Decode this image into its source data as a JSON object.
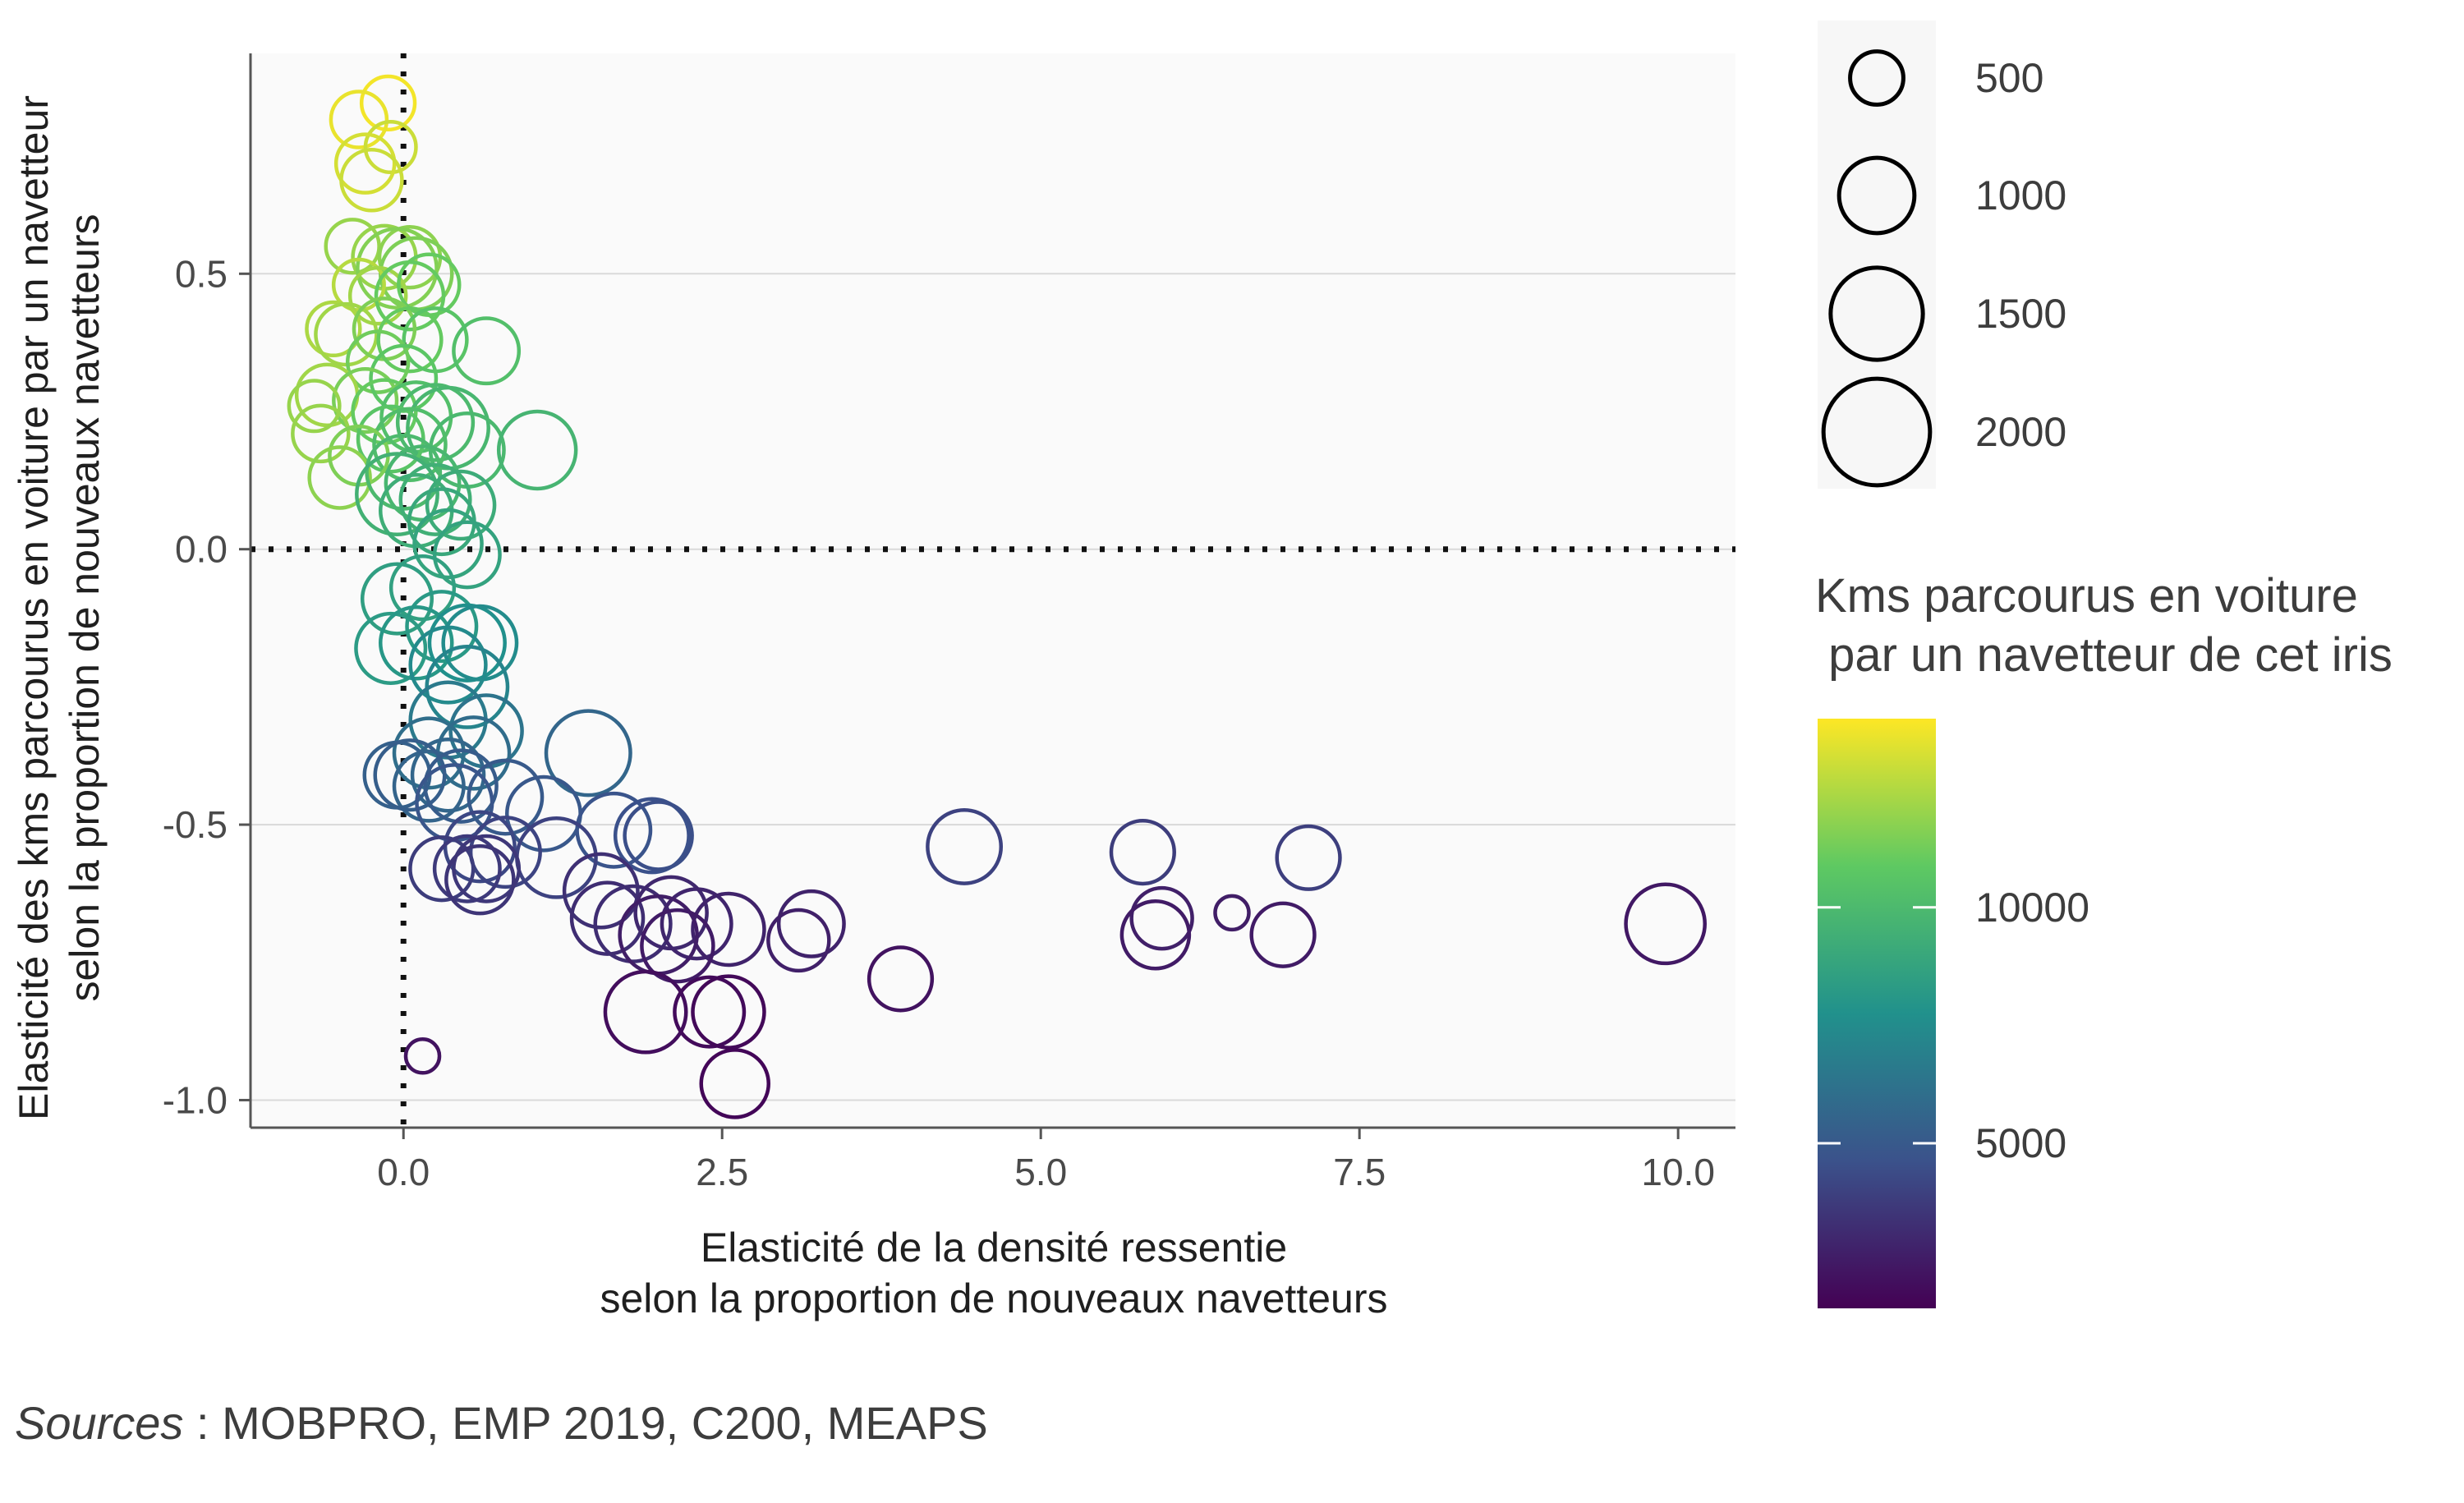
{
  "chart_data": {
    "type": "scatter",
    "title": "",
    "xlabel": [
      "Elasticité de la densité ressentie",
      "selon la proportion de nouveaux navetteurs"
    ],
    "ylabel": [
      "Elasticité des kms parcourus en voiture par un navetteur",
      "selon la proportion de nouveaux navetteurs"
    ],
    "xlim": [
      -1.2,
      10.45
    ],
    "ylim": [
      -1.05,
      0.9
    ],
    "x_ticks": [
      0.0,
      2.5,
      5.0,
      7.5,
      10.0
    ],
    "x_tick_labels": [
      "0.0",
      "2.5",
      "5.0",
      "7.5",
      "10.0"
    ],
    "y_ticks": [
      -1.0,
      -0.5,
      0.0,
      0.5
    ],
    "y_tick_labels": [
      "-1.0",
      "-0.5",
      "0.0",
      "0.5"
    ],
    "grid": "horizontal",
    "reference_lines": {
      "x": 0,
      "y": 0,
      "style": "dotted"
    },
    "size_legend": {
      "values": [
        500,
        1000,
        1500,
        2000
      ],
      "labels": [
        "500",
        "1000",
        "1500",
        "2000"
      ]
    },
    "color_legend": {
      "title": "Kms parcourus en voiture\n par un navetteur de cet iris",
      "range": [
        1500,
        14000
      ],
      "ticks": [
        5000,
        10000
      ],
      "tick_labels": [
        "5000",
        "10000"
      ],
      "colormap": "viridis",
      "colors": [
        "#440154",
        "#3b528b",
        "#21918c",
        "#5ec962",
        "#fde725"
      ]
    },
    "points": [
      {
        "x": -0.12,
        "y": 0.81,
        "size": 500,
        "color": 13800
      },
      {
        "x": -0.35,
        "y": 0.78,
        "size": 550,
        "color": 13600
      },
      {
        "x": -0.1,
        "y": 0.73,
        "size": 450,
        "color": 13000
      },
      {
        "x": -0.3,
        "y": 0.7,
        "size": 600,
        "color": 13200
      },
      {
        "x": -0.25,
        "y": 0.67,
        "size": 650,
        "color": 13000
      },
      {
        "x": -0.4,
        "y": 0.55,
        "size": 500,
        "color": 12000
      },
      {
        "x": -0.15,
        "y": 0.53,
        "size": 700,
        "color": 12000
      },
      {
        "x": 0.05,
        "y": 0.53,
        "size": 650,
        "color": 11800
      },
      {
        "x": -0.05,
        "y": 0.51,
        "size": 1100,
        "color": 11600
      },
      {
        "x": 0.1,
        "y": 0.5,
        "size": 900,
        "color": 11500
      },
      {
        "x": -0.35,
        "y": 0.48,
        "size": 450,
        "color": 12600
      },
      {
        "x": -0.2,
        "y": 0.46,
        "size": 550,
        "color": 12200
      },
      {
        "x": 0.2,
        "y": 0.48,
        "size": 650,
        "color": 11000
      },
      {
        "x": 0.05,
        "y": 0.46,
        "size": 800,
        "color": 11000
      },
      {
        "x": -0.55,
        "y": 0.4,
        "size": 500,
        "color": 12400
      },
      {
        "x": -0.45,
        "y": 0.39,
        "size": 650,
        "color": 12200
      },
      {
        "x": -0.15,
        "y": 0.4,
        "size": 650,
        "color": 11500
      },
      {
        "x": 0.05,
        "y": 0.38,
        "size": 700,
        "color": 11000
      },
      {
        "x": 0.25,
        "y": 0.38,
        "size": 700,
        "color": 10600
      },
      {
        "x": 0.65,
        "y": 0.36,
        "size": 750,
        "color": 10300
      },
      {
        "x": -0.2,
        "y": 0.34,
        "size": 650,
        "color": 11200
      },
      {
        "x": 0.0,
        "y": 0.31,
        "size": 750,
        "color": 10700
      },
      {
        "x": -0.6,
        "y": 0.28,
        "size": 650,
        "color": 12200
      },
      {
        "x": -0.3,
        "y": 0.27,
        "size": 700,
        "color": 11400
      },
      {
        "x": -0.15,
        "y": 0.25,
        "size": 700,
        "color": 11000
      },
      {
        "x": -0.7,
        "y": 0.26,
        "size": 450,
        "color": 12000
      },
      {
        "x": 0.1,
        "y": 0.24,
        "size": 850,
        "color": 10300
      },
      {
        "x": 0.25,
        "y": 0.23,
        "size": 1000,
        "color": 10000
      },
      {
        "x": 0.35,
        "y": 0.22,
        "size": 1150,
        "color": 9800
      },
      {
        "x": -0.65,
        "y": 0.21,
        "size": 550,
        "color": 12000
      },
      {
        "x": -0.1,
        "y": 0.2,
        "size": 750,
        "color": 10600
      },
      {
        "x": 0.05,
        "y": 0.19,
        "size": 900,
        "color": 10200
      },
      {
        "x": 0.5,
        "y": 0.18,
        "size": 950,
        "color": 9900
      },
      {
        "x": 1.05,
        "y": 0.18,
        "size": 1050,
        "color": 9700
      },
      {
        "x": -0.35,
        "y": 0.17,
        "size": 600,
        "color": 11500
      },
      {
        "x": -0.5,
        "y": 0.13,
        "size": 650,
        "color": 11800
      },
      {
        "x": 0.0,
        "y": 0.14,
        "size": 950,
        "color": 10000
      },
      {
        "x": 0.15,
        "y": 0.12,
        "size": 950,
        "color": 9800
      },
      {
        "x": -0.05,
        "y": 0.1,
        "size": 1150,
        "color": 9500
      },
      {
        "x": 0.25,
        "y": 0.09,
        "size": 850,
        "color": 9400
      },
      {
        "x": 0.45,
        "y": 0.08,
        "size": 800,
        "color": 9200
      },
      {
        "x": 0.1,
        "y": 0.07,
        "size": 900,
        "color": 9300
      },
      {
        "x": 0.3,
        "y": 0.05,
        "size": 750,
        "color": 9000
      },
      {
        "x": 0.35,
        "y": 0.01,
        "size": 800,
        "color": 8800
      },
      {
        "x": 0.5,
        "y": -0.01,
        "size": 750,
        "color": 8700
      },
      {
        "x": 0.15,
        "y": -0.07,
        "size": 700,
        "color": 8600
      },
      {
        "x": -0.05,
        "y": -0.09,
        "size": 850,
        "color": 8500
      },
      {
        "x": 0.3,
        "y": -0.14,
        "size": 850,
        "color": 8200
      },
      {
        "x": -0.1,
        "y": -0.18,
        "size": 850,
        "color": 8300
      },
      {
        "x": 0.1,
        "y": -0.17,
        "size": 900,
        "color": 8100
      },
      {
        "x": 0.5,
        "y": -0.17,
        "size": 1000,
        "color": 7700
      },
      {
        "x": 0.6,
        "y": -0.17,
        "size": 950,
        "color": 7500
      },
      {
        "x": 0.35,
        "y": -0.21,
        "size": 1000,
        "color": 7400
      },
      {
        "x": 0.5,
        "y": -0.25,
        "size": 1150,
        "color": 7100
      },
      {
        "x": 0.35,
        "y": -0.31,
        "size": 1000,
        "color": 6600
      },
      {
        "x": 0.65,
        "y": -0.33,
        "size": 900,
        "color": 6300
      },
      {
        "x": 0.2,
        "y": -0.37,
        "size": 850,
        "color": 6000
      },
      {
        "x": 0.55,
        "y": -0.37,
        "size": 900,
        "color": 5900
      },
      {
        "x": 1.45,
        "y": -0.37,
        "size": 1250,
        "color": 5600
      },
      {
        "x": 0.35,
        "y": -0.41,
        "size": 900,
        "color": 5600
      },
      {
        "x": 0.2,
        "y": -0.43,
        "size": 850,
        "color": 5500
      },
      {
        "x": -0.05,
        "y": -0.41,
        "size": 750,
        "color": 5300
      },
      {
        "x": 0.05,
        "y": -0.41,
        "size": 850,
        "color": 5200
      },
      {
        "x": 0.45,
        "y": -0.43,
        "size": 900,
        "color": 5100
      },
      {
        "x": 0.8,
        "y": -0.45,
        "size": 950,
        "color": 5000
      },
      {
        "x": 1.1,
        "y": -0.48,
        "size": 950,
        "color": 4900
      },
      {
        "x": 0.4,
        "y": -0.46,
        "size": 1000,
        "color": 4800
      },
      {
        "x": 1.65,
        "y": -0.51,
        "size": 950,
        "color": 4700
      },
      {
        "x": 1.95,
        "y": -0.52,
        "size": 950,
        "color": 4600
      },
      {
        "x": 2.0,
        "y": -0.52,
        "size": 800,
        "color": 4500
      },
      {
        "x": 0.6,
        "y": -0.54,
        "size": 850,
        "color": 4200
      },
      {
        "x": 0.8,
        "y": -0.55,
        "size": 850,
        "color": 4100
      },
      {
        "x": 1.2,
        "y": -0.56,
        "size": 1100,
        "color": 4000
      },
      {
        "x": 4.4,
        "y": -0.54,
        "size": 950,
        "color": 4000
      },
      {
        "x": 5.8,
        "y": -0.55,
        "size": 700,
        "color": 3800
      },
      {
        "x": 7.1,
        "y": -0.56,
        "size": 700,
        "color": 3900
      },
      {
        "x": 0.3,
        "y": -0.58,
        "size": 700,
        "color": 3800
      },
      {
        "x": 0.5,
        "y": -0.58,
        "size": 750,
        "color": 3700
      },
      {
        "x": 0.65,
        "y": -0.58,
        "size": 750,
        "color": 3600
      },
      {
        "x": 0.6,
        "y": -0.6,
        "size": 800,
        "color": 3500
      },
      {
        "x": 1.55,
        "y": -0.62,
        "size": 950,
        "color": 3300
      },
      {
        "x": 1.6,
        "y": -0.67,
        "size": 900,
        "color": 3200
      },
      {
        "x": 1.8,
        "y": -0.68,
        "size": 1000,
        "color": 3200
      },
      {
        "x": 2.1,
        "y": -0.66,
        "size": 900,
        "color": 3000
      },
      {
        "x": 2.3,
        "y": -0.68,
        "size": 850,
        "color": 2900
      },
      {
        "x": 2.55,
        "y": -0.69,
        "size": 900,
        "color": 2800
      },
      {
        "x": 3.2,
        "y": -0.68,
        "size": 750,
        "color": 2800
      },
      {
        "x": 3.1,
        "y": -0.71,
        "size": 650,
        "color": 2700
      },
      {
        "x": 2.0,
        "y": -0.7,
        "size": 1050,
        "color": 2600
      },
      {
        "x": 2.15,
        "y": -0.72,
        "size": 900,
        "color": 2500
      },
      {
        "x": 5.95,
        "y": -0.67,
        "size": 650,
        "color": 2700
      },
      {
        "x": 6.5,
        "y": -0.66,
        "size": 200,
        "color": 2600
      },
      {
        "x": 5.9,
        "y": -0.7,
        "size": 800,
        "color": 2500
      },
      {
        "x": 6.9,
        "y": -0.7,
        "size": 700,
        "color": 2500
      },
      {
        "x": 9.9,
        "y": -0.68,
        "size": 1100,
        "color": 2400
      },
      {
        "x": 3.9,
        "y": -0.78,
        "size": 700,
        "color": 2200
      },
      {
        "x": 1.9,
        "y": -0.84,
        "size": 1150,
        "color": 2000
      },
      {
        "x": 2.4,
        "y": -0.84,
        "size": 850,
        "color": 1900
      },
      {
        "x": 2.55,
        "y": -0.84,
        "size": 900,
        "color": 1800
      },
      {
        "x": 2.6,
        "y": -0.97,
        "size": 800,
        "color": 1700
      },
      {
        "x": 0.15,
        "y": -0.92,
        "size": 200,
        "color": 2200
      }
    ]
  },
  "sources": {
    "label": "Sources",
    "text": " : MOBPRO, EMP 2019, C200, MEAPS"
  }
}
